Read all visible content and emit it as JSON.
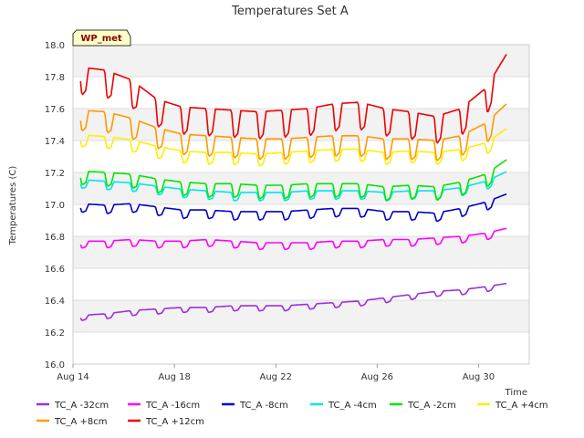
{
  "chart_data": {
    "type": "line",
    "title": "Temperatures Set A",
    "xlabel": "Time",
    "ylabel": "Temperatures (C)",
    "badge": "WP_met",
    "ylim": [
      16.0,
      18.0
    ],
    "yticks": [
      "16.0",
      "16.2",
      "16.4",
      "16.6",
      "16.8",
      "17.0",
      "17.2",
      "17.4",
      "17.6",
      "17.8",
      "18.0"
    ],
    "xlim_days": [
      14,
      32
    ],
    "xticks": [
      {
        "day": 14,
        "label": "Aug 14"
      },
      {
        "day": 18,
        "label": "Aug 18"
      },
      {
        "day": 22,
        "label": "Aug 22"
      },
      {
        "day": 26,
        "label": "Aug 26"
      },
      {
        "day": 30,
        "label": "Aug 30"
      }
    ],
    "grid": "horizontal bands",
    "legend_position": "bottom",
    "series": [
      {
        "name": "TC_A -32cm",
        "color": "#9b30d9",
        "x": [
          14.3,
          15.3,
          16.3,
          17.3,
          18.3,
          19.3,
          20.3,
          21.3,
          22.3,
          23.3,
          24.3,
          25.3,
          26.3,
          27.3,
          28.3,
          29.3,
          30.3,
          31.1
        ],
        "y": [
          16.29,
          16.3,
          16.32,
          16.33,
          16.34,
          16.34,
          16.35,
          16.35,
          16.35,
          16.36,
          16.37,
          16.38,
          16.4,
          16.42,
          16.44,
          16.45,
          16.47,
          16.49
        ],
        "amp": 0.03
      },
      {
        "name": "TC_A -16cm",
        "color": "#ff00ff",
        "x": [
          14.3,
          15.3,
          16.3,
          17.3,
          18.3,
          19.3,
          20.3,
          21.3,
          22.3,
          23.3,
          24.3,
          25.3,
          26.3,
          27.3,
          28.3,
          29.3,
          30.3,
          31.1
        ],
        "y": [
          16.75,
          16.75,
          16.76,
          16.75,
          16.75,
          16.76,
          16.75,
          16.74,
          16.74,
          16.74,
          16.75,
          16.75,
          16.76,
          16.76,
          16.77,
          16.78,
          16.8,
          16.83
        ],
        "amp": 0.04
      },
      {
        "name": "TC_A -8cm",
        "color": "#0000cc",
        "x": [
          14.3,
          15.3,
          16.3,
          17.3,
          18.3,
          19.3,
          20.3,
          21.3,
          22.3,
          23.3,
          24.3,
          25.3,
          26.3,
          27.3,
          28.3,
          29.3,
          30.3,
          31.1
        ],
        "y": [
          16.98,
          16.97,
          16.98,
          16.96,
          16.94,
          16.94,
          16.93,
          16.93,
          16.93,
          16.94,
          16.95,
          16.95,
          16.93,
          16.93,
          16.92,
          16.95,
          16.99,
          17.04
        ],
        "amp": 0.05
      },
      {
        "name": "TC_A -4cm",
        "color": "#00e5ee",
        "x": [
          14.3,
          15.3,
          16.3,
          17.3,
          18.3,
          19.3,
          20.3,
          21.3,
          22.3,
          23.3,
          24.3,
          25.3,
          26.3,
          27.3,
          28.3,
          29.3,
          30.3,
          31.1
        ],
        "y": [
          17.13,
          17.12,
          17.11,
          17.09,
          17.07,
          17.06,
          17.05,
          17.05,
          17.05,
          17.06,
          17.06,
          17.06,
          17.05,
          17.06,
          17.06,
          17.08,
          17.12,
          17.18
        ],
        "amp": 0.05
      },
      {
        "name": "TC_A -2cm",
        "color": "#00e600",
        "x": [
          14.3,
          15.3,
          16.3,
          17.3,
          18.3,
          19.3,
          20.3,
          21.3,
          22.3,
          23.3,
          24.3,
          25.3,
          26.3,
          27.3,
          28.3,
          29.3,
          30.3,
          31.1
        ],
        "y": [
          17.17,
          17.16,
          17.15,
          17.12,
          17.1,
          17.09,
          17.09,
          17.08,
          17.08,
          17.09,
          17.09,
          17.09,
          17.07,
          17.08,
          17.07,
          17.1,
          17.15,
          17.24
        ],
        "amp": 0.08
      },
      {
        "name": "TC_A +4cm",
        "color": "#ffee00",
        "x": [
          14.3,
          15.3,
          16.3,
          17.3,
          18.3,
          19.3,
          20.3,
          21.3,
          22.3,
          23.3,
          24.3,
          25.3,
          26.3,
          27.3,
          28.3,
          29.3,
          30.3,
          31.1
        ],
        "y": [
          17.4,
          17.39,
          17.37,
          17.33,
          17.3,
          17.29,
          17.29,
          17.28,
          17.29,
          17.3,
          17.31,
          17.31,
          17.29,
          17.3,
          17.29,
          17.31,
          17.35,
          17.44
        ],
        "amp": 0.07
      },
      {
        "name": "TC_A +8cm",
        "color": "#ff9900",
        "x": [
          14.3,
          15.3,
          16.3,
          17.3,
          18.3,
          19.3,
          20.3,
          21.3,
          22.3,
          23.3,
          24.3,
          25.3,
          26.3,
          27.3,
          28.3,
          29.3,
          30.3,
          31.1
        ],
        "y": [
          17.53,
          17.52,
          17.48,
          17.42,
          17.38,
          17.37,
          17.36,
          17.35,
          17.35,
          17.36,
          17.37,
          17.37,
          17.35,
          17.35,
          17.34,
          17.37,
          17.45,
          17.57
        ],
        "amp": 0.12
      },
      {
        "name": "TC_A +12cm",
        "color": "#ee0000",
        "x": [
          14.3,
          15.3,
          16.3,
          17.3,
          18.3,
          19.3,
          20.3,
          21.3,
          22.3,
          23.3,
          24.3,
          25.3,
          26.3,
          27.3,
          28.3,
          29.3,
          30.3,
          31.1
        ],
        "y": [
          17.78,
          17.76,
          17.7,
          17.58,
          17.53,
          17.52,
          17.51,
          17.5,
          17.51,
          17.52,
          17.55,
          17.56,
          17.52,
          17.5,
          17.47,
          17.52,
          17.65,
          17.86
        ],
        "amp": 0.16
      }
    ]
  }
}
